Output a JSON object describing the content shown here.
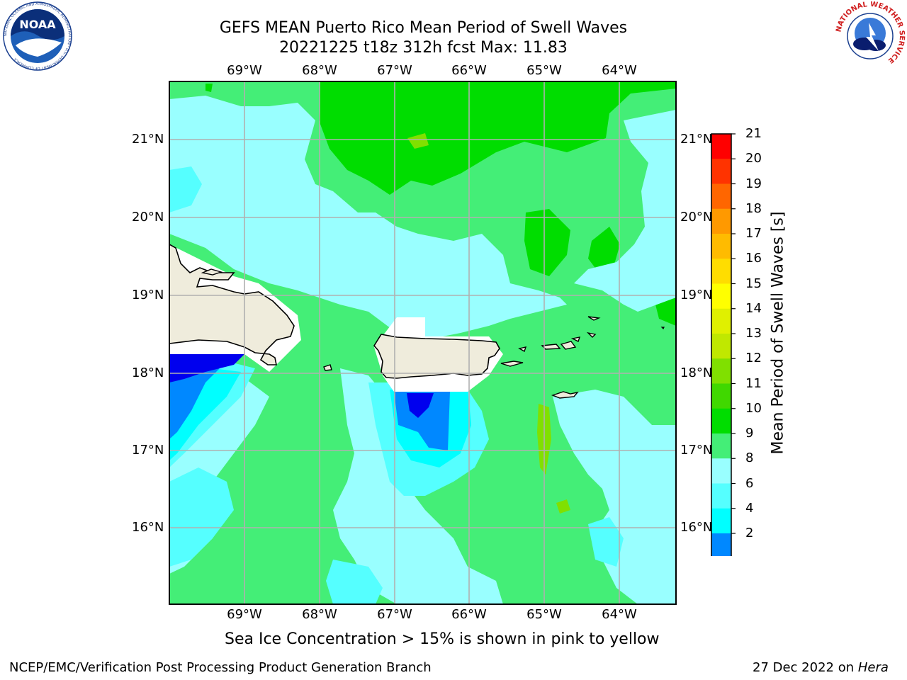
{
  "title": {
    "line1": "GEFS MEAN Puerto Rico Mean Period of Swell Waves",
    "line2": "20221225 t18z 312h fcst   Max: 11.83"
  },
  "map": {
    "lon_labels": [
      "69°W",
      "68°W",
      "67°W",
      "66°W",
      "65°W",
      "64°W"
    ],
    "lat_labels": [
      "21°N",
      "20°N",
      "19°N",
      "18°N",
      "17°N",
      "16°N"
    ],
    "land_color": "#efecdc",
    "coast_color": "#000000",
    "grid_color": "#b0b0b0"
  },
  "colorbar": {
    "title": "Mean Period of Swell Waves [s]",
    "ticks": [
      "21",
      "20",
      "19",
      "18",
      "17",
      "16",
      "15",
      "14",
      "13",
      "12",
      "11",
      "10",
      "9",
      "8",
      "6",
      "4",
      "2"
    ],
    "colors": [
      "#ff0000",
      "#ff3300",
      "#ff6600",
      "#ff9900",
      "#ffbb00",
      "#ffdd00",
      "#ffff00",
      "#e0f000",
      "#c0e800",
      "#80e000",
      "#40d800",
      "#00dd00",
      "#44ee77",
      "#99ffff",
      "#55ffff",
      "#00ffff",
      "#0088ff",
      "#0000ee"
    ]
  },
  "note": "Sea Ice Concentration > 15% is shown in pink to yellow",
  "footer": {
    "left": "NCEP/EMC/Verification Post Processing Product Generation Branch",
    "date": "27 Dec 2022 on ",
    "host": "Hera"
  },
  "logos": {
    "noaa": "NOAA",
    "noaa_ring": "NATIONAL OCEANIC AND ATMOSPHERIC ADMINISTRATION · U.S. DEPARTMENT OF COMMERCE",
    "nws_ring": "NATIONAL WEATHER SERVICE"
  }
}
